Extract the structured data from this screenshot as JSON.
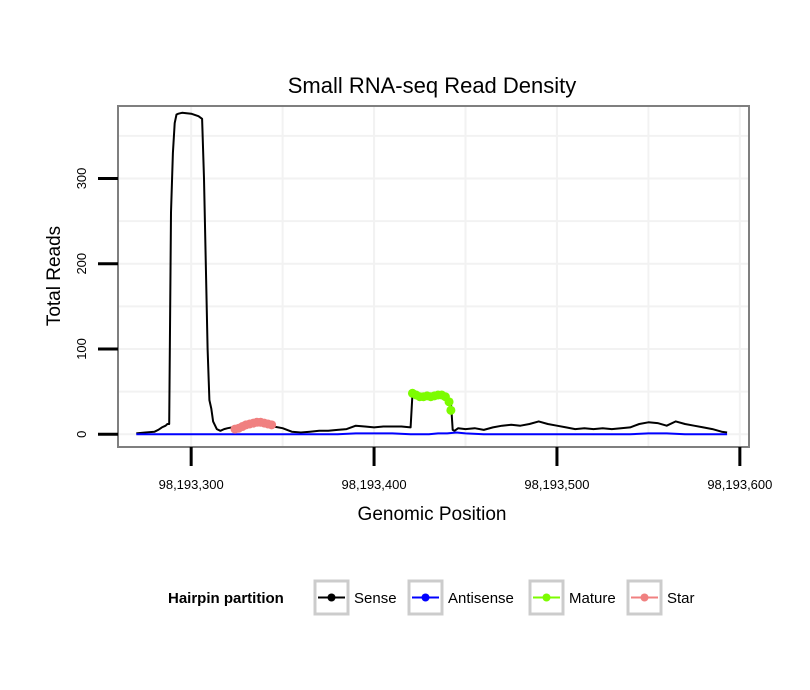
{
  "chart_data": {
    "type": "line",
    "title": "Small RNA-seq Read Density",
    "xlabel": "Genomic Position",
    "ylabel": "Total Reads",
    "xlim": [
      98193260,
      98193605
    ],
    "ylim": [
      -15,
      385
    ],
    "x_ticks": [
      {
        "value": 98193300,
        "label": "98,193,300"
      },
      {
        "value": 98193400,
        "label": "98,193,400"
      },
      {
        "value": 98193500,
        "label": "98,193,500"
      },
      {
        "value": 98193600,
        "label": "98,193,600"
      }
    ],
    "y_ticks": [
      {
        "value": 0,
        "label": "0"
      },
      {
        "value": 100,
        "label": "100"
      },
      {
        "value": 200,
        "label": "200"
      },
      {
        "value": 300,
        "label": "300"
      }
    ],
    "grid": true,
    "legend": {
      "title": "Hairpin partition",
      "position": "bottom",
      "entries": [
        {
          "label": "Sense",
          "color": "#000000"
        },
        {
          "label": "Antisense",
          "color": "#0000ff"
        },
        {
          "label": "Mature",
          "color": "#7cfc00"
        },
        {
          "label": "Star",
          "color": "#f08080"
        }
      ]
    },
    "series": [
      {
        "name": "Sense",
        "color": "#000000",
        "markers": false,
        "x": [
          98193270,
          98193275,
          98193280,
          98193282,
          98193284,
          98193286,
          98193287,
          98193288,
          98193289,
          98193290,
          98193291,
          98193292,
          98193293,
          98193295,
          98193300,
          98193304,
          98193306,
          98193307,
          98193308,
          98193309,
          98193310,
          98193311,
          98193312,
          98193314,
          98193316,
          98193318,
          98193320,
          98193325,
          98193330,
          98193340,
          98193345,
          98193350,
          98193355,
          98193360,
          98193365,
          98193370,
          98193375,
          98193380,
          98193385,
          98193390,
          98193395,
          98193400,
          98193405,
          98193410,
          98193415,
          98193420,
          98193421,
          98193422,
          98193425,
          98193430,
          98193435,
          98193440,
          98193442,
          98193443,
          98193444,
          98193446,
          98193450,
          98193455,
          98193460,
          98193465,
          98193470,
          98193475,
          98193480,
          98193485,
          98193490,
          98193495,
          98193500,
          98193505,
          98193510,
          98193515,
          98193520,
          98193525,
          98193530,
          98193535,
          98193540,
          98193545,
          98193550,
          98193555,
          98193560,
          98193565,
          98193570,
          98193575,
          98193580,
          98193585,
          98193590,
          98193593
        ],
        "y": [
          1,
          2,
          3,
          5,
          8,
          10,
          12,
          12,
          260,
          330,
          365,
          375,
          376,
          377,
          376,
          373,
          370,
          300,
          200,
          100,
          40,
          30,
          15,
          6,
          4,
          6,
          7,
          9,
          12,
          11,
          9,
          7,
          3,
          2,
          3,
          4,
          4,
          5,
          6,
          10,
          9,
          8,
          9,
          9,
          9,
          8,
          48,
          46,
          46,
          45,
          46,
          45,
          38,
          5,
          4,
          7,
          6,
          7,
          5,
          8,
          10,
          11,
          10,
          12,
          15,
          12,
          10,
          8,
          6,
          7,
          6,
          7,
          6,
          7,
          8,
          12,
          14,
          13,
          10,
          15,
          12,
          10,
          8,
          6,
          3,
          2
        ]
      },
      {
        "name": "Antisense",
        "color": "#0000ff",
        "markers": false,
        "x": [
          98193270,
          98193300,
          98193340,
          98193380,
          98193390,
          98193400,
          98193410,
          98193420,
          98193430,
          98193435,
          98193440,
          98193445,
          98193450,
          98193460,
          98193500,
          98193540,
          98193550,
          98193555,
          98193560,
          98193570,
          98193580,
          98193593
        ],
        "y": [
          0,
          0,
          0,
          0,
          1,
          1,
          1,
          0,
          0,
          1,
          1,
          2,
          1,
          0,
          0,
          0,
          1,
          1,
          1,
          0,
          0,
          0
        ]
      },
      {
        "name": "Mature",
        "color": "#7cfc00",
        "markers": true,
        "x": [
          98193421,
          98193423,
          98193425,
          98193427,
          98193429,
          98193431,
          98193433,
          98193435,
          98193437,
          98193439,
          98193441,
          98193442
        ],
        "y": [
          48,
          46,
          44,
          44,
          45,
          44,
          45,
          46,
          46,
          44,
          38,
          28
        ]
      },
      {
        "name": "Star",
        "color": "#f08080",
        "markers": true,
        "x": [
          98193324,
          98193326,
          98193328,
          98193330,
          98193332,
          98193334,
          98193336,
          98193338,
          98193340,
          98193342,
          98193344
        ],
        "y": [
          6,
          7,
          9,
          11,
          12,
          13,
          14,
          14,
          13,
          12,
          11
        ]
      }
    ]
  }
}
